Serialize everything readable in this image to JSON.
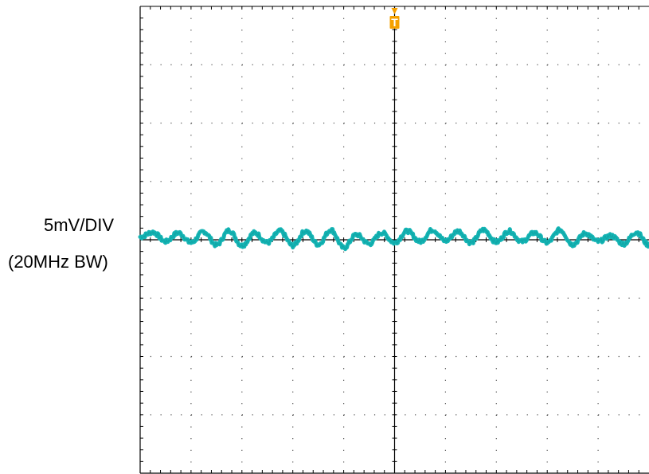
{
  "labels": {
    "scale": "5mV/DIV",
    "bandwidth": "(20MHz BW)"
  },
  "trigger": {
    "marker": "T",
    "color": "#F5A000"
  },
  "trace_color": "#14B4B4",
  "chart_data": {
    "type": "line",
    "title": "",
    "xlabel": "",
    "ylabel": "",
    "x_divisions": 10,
    "y_divisions": 8,
    "y_units_per_division": "5mV",
    "xlim": [
      0,
      10
    ],
    "ylim": [
      -4,
      4
    ],
    "grid": true,
    "trigger_position_div": 5,
    "series": [
      {
        "x": [
          0,
          0.25,
          0.5,
          0.75,
          1,
          1.25,
          1.5,
          1.75,
          2,
          2.25,
          2.5,
          2.75,
          3,
          3.25,
          3.5,
          3.75,
          4,
          4.25,
          4.5,
          4.75,
          5,
          5.25,
          5.5,
          5.75,
          6,
          6.25,
          6.5,
          6.75,
          7,
          7.25,
          7.5,
          7.75,
          8,
          8.25,
          8.5,
          8.75,
          9,
          9.25,
          9.5,
          9.75,
          10
        ],
        "y": [
          0.05,
          0.13,
          -0.03,
          0.12,
          -0.05,
          0.14,
          -0.09,
          0.16,
          -0.1,
          0.12,
          -0.05,
          0.15,
          -0.1,
          0.15,
          -0.08,
          0.17,
          -0.14,
          0.09,
          -0.07,
          0.12,
          -0.05,
          0.15,
          -0.03,
          0.17,
          -0.02,
          0.15,
          -0.05,
          0.17,
          -0.04,
          0.15,
          -0.03,
          0.12,
          -0.05,
          0.17,
          -0.08,
          0.11,
          -0.03,
          0.07,
          -0.07,
          0.13,
          -0.09
        ]
      }
    ]
  }
}
